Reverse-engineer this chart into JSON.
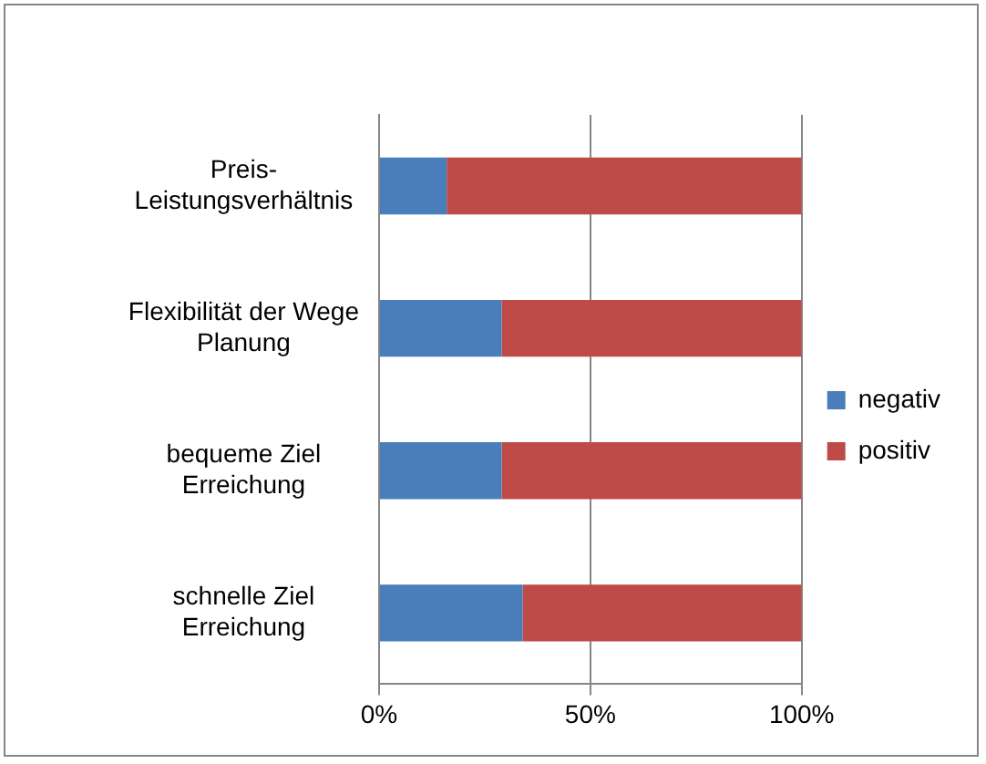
{
  "chart_data": {
    "type": "bar",
    "orientation": "horizontal",
    "stacked": true,
    "categories": [
      "Preis-Leistungsverhältnis",
      "Flexibilität der Wege Planung",
      "bequeme Ziel Erreichung",
      "schnelle Ziel Erreichung"
    ],
    "series": [
      {
        "name": "negativ",
        "color": "#4a7ebb",
        "values": [
          16,
          29,
          29,
          34
        ]
      },
      {
        "name": "positiv",
        "color": "#be4b48",
        "values": [
          84,
          71,
          71,
          66
        ]
      }
    ],
    "xlim": [
      0,
      100
    ],
    "xticks": [
      {
        "value": 0,
        "label": "0%"
      },
      {
        "value": 50,
        "label": "50%"
      },
      {
        "value": 100,
        "label": "100%"
      }
    ],
    "grid": "x",
    "legend": "right"
  }
}
